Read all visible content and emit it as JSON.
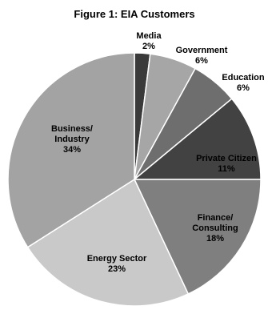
{
  "chart_data": {
    "type": "pie",
    "title": "Figure 1: EIA Customers",
    "start_angle_deg": 0,
    "direction": "clockwise",
    "slices": [
      {
        "label_lines": [
          "Media"
        ],
        "name": "Media",
        "percent_label": "2%",
        "value": 2,
        "color": "#3a3a3a",
        "label_color": "#000000"
      },
      {
        "label_lines": [
          "Government"
        ],
        "name": "Government",
        "percent_label": "6%",
        "value": 6,
        "color": "#a6a6a6",
        "label_color": "#000000"
      },
      {
        "label_lines": [
          "Education"
        ],
        "name": "Education",
        "percent_label": "6%",
        "value": 6,
        "color": "#6e6e6e",
        "label_color": "#000000"
      },
      {
        "label_lines": [
          "Private Citizen"
        ],
        "name": "Private Citizen",
        "percent_label": "11%",
        "value": 11,
        "color": "#424242",
        "label_color": "#000000"
      },
      {
        "label_lines": [
          "Finance/",
          "Consulting"
        ],
        "name": "Finance/ Consulting",
        "percent_label": "18%",
        "value": 18,
        "color": "#7f7f7f",
        "label_color": "#000000"
      },
      {
        "label_lines": [
          "Energy Sector"
        ],
        "name": "Energy Sector",
        "percent_label": "23%",
        "value": 23,
        "color": "#c9c9c9",
        "label_color": "#000000"
      },
      {
        "label_lines": [
          "Business/",
          "Industry"
        ],
        "name": "Business/ Industry",
        "percent_label": "34%",
        "value": 34,
        "color": "#a3a3a3",
        "label_color": "#000000"
      }
    ]
  }
}
